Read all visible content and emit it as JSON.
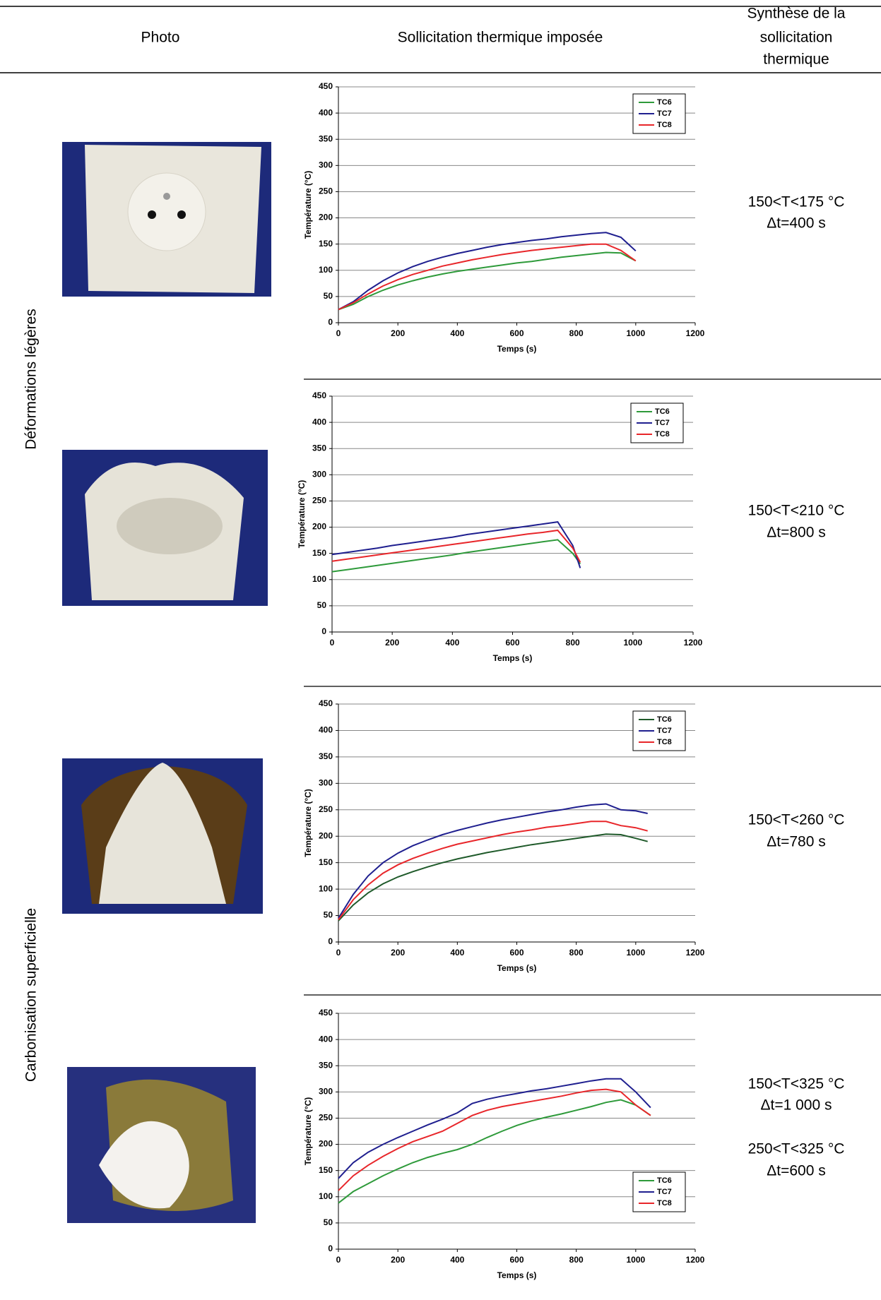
{
  "table": {
    "header": [
      "Photo",
      "Sollicitation thermique imposée",
      [
        "Synthèse de la",
        "sollicitation",
        "thermique"
      ]
    ],
    "groups": [
      "Déformations légères",
      "Carbonisation superficielle"
    ],
    "summaries": [
      [
        "150<T<175 °C",
        "Δt=400 s"
      ],
      [
        "150<T<210 °C",
        "Δt=800 s"
      ],
      [
        "150<T<260 °C",
        "Δt=780 s"
      ],
      [
        "150<T<325 °C",
        "Δt=1 000 s",
        "250<T<325 °C",
        "Δt=600 s"
      ]
    ]
  },
  "chart_data": [
    {
      "type": "line",
      "x_label": "Temps (s)",
      "y_label": "Température (°C)",
      "xlim": [
        0,
        1200
      ],
      "ylim": [
        0,
        450
      ],
      "xticks": [
        0,
        200,
        400,
        600,
        800,
        1000,
        1200
      ],
      "yticks": [
        0,
        50,
        100,
        150,
        200,
        250,
        300,
        350,
        400,
        450
      ],
      "grid": true,
      "legend": "upper right",
      "x": [
        0,
        50,
        100,
        150,
        200,
        250,
        300,
        350,
        400,
        450,
        500,
        550,
        600,
        650,
        700,
        750,
        800,
        850,
        900,
        950,
        1000
      ],
      "series": [
        {
          "name": "TC6",
          "color": "#2e9a3a",
          "values": [
            25,
            35,
            50,
            62,
            72,
            80,
            87,
            93,
            98,
            102,
            106,
            110,
            114,
            117,
            121,
            125,
            128,
            131,
            134,
            133,
            118
          ]
        },
        {
          "name": "TC7",
          "color": "#1f1f8f",
          "values": [
            25,
            40,
            62,
            80,
            95,
            107,
            117,
            125,
            132,
            138,
            144,
            149,
            153,
            157,
            160,
            164,
            167,
            170,
            172,
            163,
            137
          ]
        },
        {
          "name": "TC8",
          "color": "#e8262a",
          "values": [
            25,
            38,
            55,
            70,
            82,
            92,
            100,
            108,
            114,
            120,
            125,
            130,
            134,
            138,
            141,
            144,
            147,
            150,
            150,
            138,
            118
          ]
        }
      ]
    },
    {
      "type": "line",
      "x_label": "Temps (s)",
      "y_label": "Température (°C)",
      "xlim": [
        0,
        1200
      ],
      "ylim": [
        0,
        450
      ],
      "xticks": [
        0,
        200,
        400,
        600,
        800,
        1000,
        1200
      ],
      "yticks": [
        0,
        50,
        100,
        150,
        200,
        250,
        300,
        350,
        400,
        450
      ],
      "grid": true,
      "legend": "upper right",
      "x": [
        0,
        50,
        100,
        150,
        200,
        250,
        300,
        350,
        400,
        450,
        500,
        550,
        600,
        650,
        700,
        750,
        800,
        825
      ],
      "series": [
        {
          "name": "TC6",
          "color": "#2e9a3a",
          "values": [
            115,
            119,
            123,
            127,
            131,
            135,
            139,
            143,
            147,
            152,
            156,
            160,
            164,
            168,
            172,
            176,
            150,
            130
          ]
        },
        {
          "name": "TC7",
          "color": "#1f1f8f",
          "values": [
            148,
            152,
            156,
            160,
            165,
            169,
            173,
            177,
            181,
            186,
            190,
            194,
            198,
            202,
            206,
            210,
            165,
            122
          ]
        },
        {
          "name": "TC8",
          "color": "#e8262a",
          "values": [
            135,
            139,
            143,
            147,
            151,
            155,
            159,
            163,
            167,
            171,
            175,
            179,
            183,
            187,
            190,
            194,
            160,
            133
          ]
        }
      ]
    },
    {
      "type": "line",
      "x_label": "Temps (s)",
      "y_label": "Température (°C)",
      "xlim": [
        0,
        1200
      ],
      "ylim": [
        0,
        450
      ],
      "xticks": [
        0,
        200,
        400,
        600,
        800,
        1000,
        1200
      ],
      "yticks": [
        0,
        50,
        100,
        150,
        200,
        250,
        300,
        350,
        400,
        450
      ],
      "grid": true,
      "legend": "upper right",
      "x": [
        0,
        50,
        100,
        150,
        200,
        250,
        300,
        350,
        400,
        450,
        500,
        550,
        600,
        650,
        700,
        750,
        800,
        850,
        900,
        950,
        1000,
        1040
      ],
      "series": [
        {
          "name": "TC6",
          "color": "#1f5a2a",
          "values": [
            40,
            70,
            93,
            110,
            123,
            133,
            142,
            150,
            157,
            163,
            169,
            174,
            179,
            184,
            188,
            192,
            196,
            200,
            204,
            203,
            196,
            190
          ]
        },
        {
          "name": "TC7",
          "color": "#1f1f8f",
          "values": [
            45,
            90,
            125,
            150,
            168,
            182,
            193,
            203,
            211,
            218,
            225,
            231,
            236,
            241,
            246,
            250,
            255,
            259,
            261,
            250,
            248,
            243
          ]
        },
        {
          "name": "TC8",
          "color": "#e8262a",
          "values": [
            42,
            80,
            108,
            130,
            146,
            158,
            168,
            177,
            185,
            191,
            197,
            203,
            208,
            212,
            217,
            220,
            224,
            228,
            228,
            220,
            216,
            210
          ]
        }
      ]
    },
    {
      "type": "line",
      "x_label": "Temps (s)",
      "y_label": "Température (°C)",
      "xlim": [
        0,
        1200
      ],
      "ylim": [
        0,
        450
      ],
      "xticks": [
        0,
        200,
        400,
        600,
        800,
        1000,
        1200
      ],
      "yticks": [
        0,
        50,
        100,
        150,
        200,
        250,
        300,
        350,
        400,
        450
      ],
      "grid": true,
      "legend": "lower right",
      "x": [
        0,
        50,
        100,
        150,
        200,
        250,
        300,
        350,
        400,
        450,
        500,
        550,
        600,
        650,
        700,
        750,
        800,
        850,
        900,
        950,
        1000,
        1050
      ],
      "series": [
        {
          "name": "TC6",
          "color": "#2e9a3a",
          "values": [
            88,
            110,
            125,
            140,
            153,
            165,
            175,
            183,
            190,
            200,
            213,
            225,
            236,
            245,
            252,
            258,
            265,
            272,
            280,
            285,
            275,
            255
          ]
        },
        {
          "name": "TC7",
          "color": "#1f1f8f",
          "values": [
            135,
            165,
            185,
            200,
            213,
            225,
            237,
            248,
            260,
            278,
            286,
            292,
            297,
            302,
            306,
            311,
            316,
            321,
            325,
            325,
            300,
            270
          ]
        },
        {
          "name": "TC8",
          "color": "#e8262a",
          "values": [
            112,
            140,
            160,
            177,
            192,
            205,
            215,
            225,
            240,
            255,
            265,
            272,
            277,
            282,
            287,
            292,
            298,
            303,
            305,
            300,
            275,
            255
          ]
        }
      ]
    }
  ]
}
